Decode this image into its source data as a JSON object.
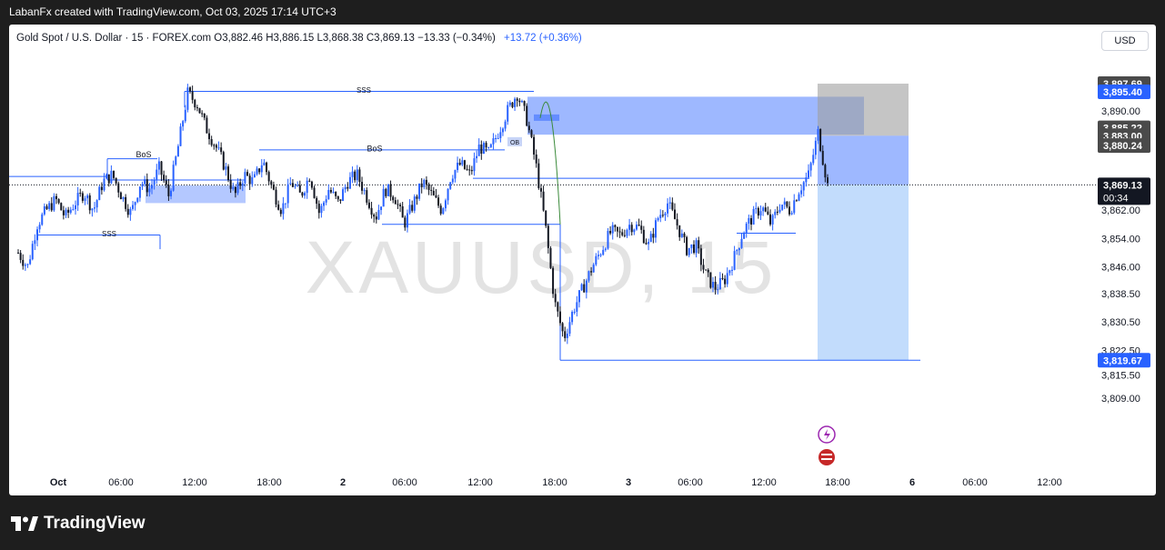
{
  "header": {
    "credit": "LabanFx created with TradingView.com, Oct 03, 2025 17:14 UTC+3"
  },
  "legend": {
    "title": "Gold Spot / U.S. Dollar · 15 · FOREX.com",
    "open": "O3,882.46",
    "high": "H3,886.15",
    "low": "L3,868.38",
    "close": "C3,869.13",
    "change": "−13.33 (−0.34%)",
    "live_change": "+13.72 (+0.36%)"
  },
  "currency_button": "USD",
  "watermark": "XAUUSD, 15",
  "brand": "TradingView",
  "colors": {
    "up": "#2962ff",
    "down": "#131722",
    "zone": "#2962ff",
    "target": "#90bff9",
    "stop": "#9e9e9e",
    "label_dark": "#4a4a4a"
  },
  "chart_data": {
    "type": "candlestick",
    "price_ticks": [
      "3,890.00",
      "3,862.00",
      "3,854.00",
      "3,846.00",
      "3,838.50",
      "3,830.50",
      "3,822.50",
      "3,815.50",
      "3,809.00"
    ],
    "price_labels": [
      {
        "value": 3897.69,
        "text": "3,897.69",
        "style": "dark"
      },
      {
        "value": 3895.4,
        "text": "3,895.40",
        "style": "blue"
      },
      {
        "value": 3885.22,
        "text": "3,885.22",
        "style": "dark"
      },
      {
        "value": 3883.0,
        "text": "3,883.00",
        "style": "dark"
      },
      {
        "value": 3880.24,
        "text": "3,880.24",
        "style": "dark"
      },
      {
        "value": 3869.13,
        "text": "3,869.13",
        "style": "black",
        "sub": "00:34"
      },
      {
        "value": 3819.67,
        "text": "3,819.67",
        "style": "blue"
      }
    ],
    "time_ticks": [
      "Oct",
      "06:00",
      "12:00",
      "18:00",
      "2",
      "06:00",
      "12:00",
      "18:00",
      "3",
      "06:00",
      "12:00",
      "18:00",
      "6",
      "06:00",
      "12:00"
    ],
    "annotations": {
      "bos": "BoS",
      "sss": "SSS",
      "ob": "OB"
    },
    "close_path": [
      3850,
      3846,
      3858,
      3862,
      3865,
      3860,
      3864,
      3867,
      3862,
      3870,
      3872,
      3866,
      3861,
      3870,
      3868,
      3874,
      3866,
      3880,
      3895,
      3892,
      3885,
      3880,
      3874,
      3866,
      3872,
      3870,
      3876,
      3868,
      3862,
      3870,
      3866,
      3872,
      3861,
      3868,
      3864,
      3870,
      3872,
      3866,
      3860,
      3868,
      3866,
      3858,
      3864,
      3870,
      3866,
      3862,
      3872,
      3875,
      3872,
      3880,
      3878,
      3884,
      3890,
      3895,
      3888,
      3875,
      3858,
      3836,
      3826,
      3834,
      3840,
      3846,
      3851,
      3856,
      3855,
      3858,
      3857,
      3852,
      3860,
      3864,
      3858,
      3851,
      3852,
      3844,
      3840,
      3842,
      3848,
      3856,
      3860,
      3863,
      3858,
      3864,
      3862,
      3868,
      3872,
      3884,
      3869
    ]
  }
}
